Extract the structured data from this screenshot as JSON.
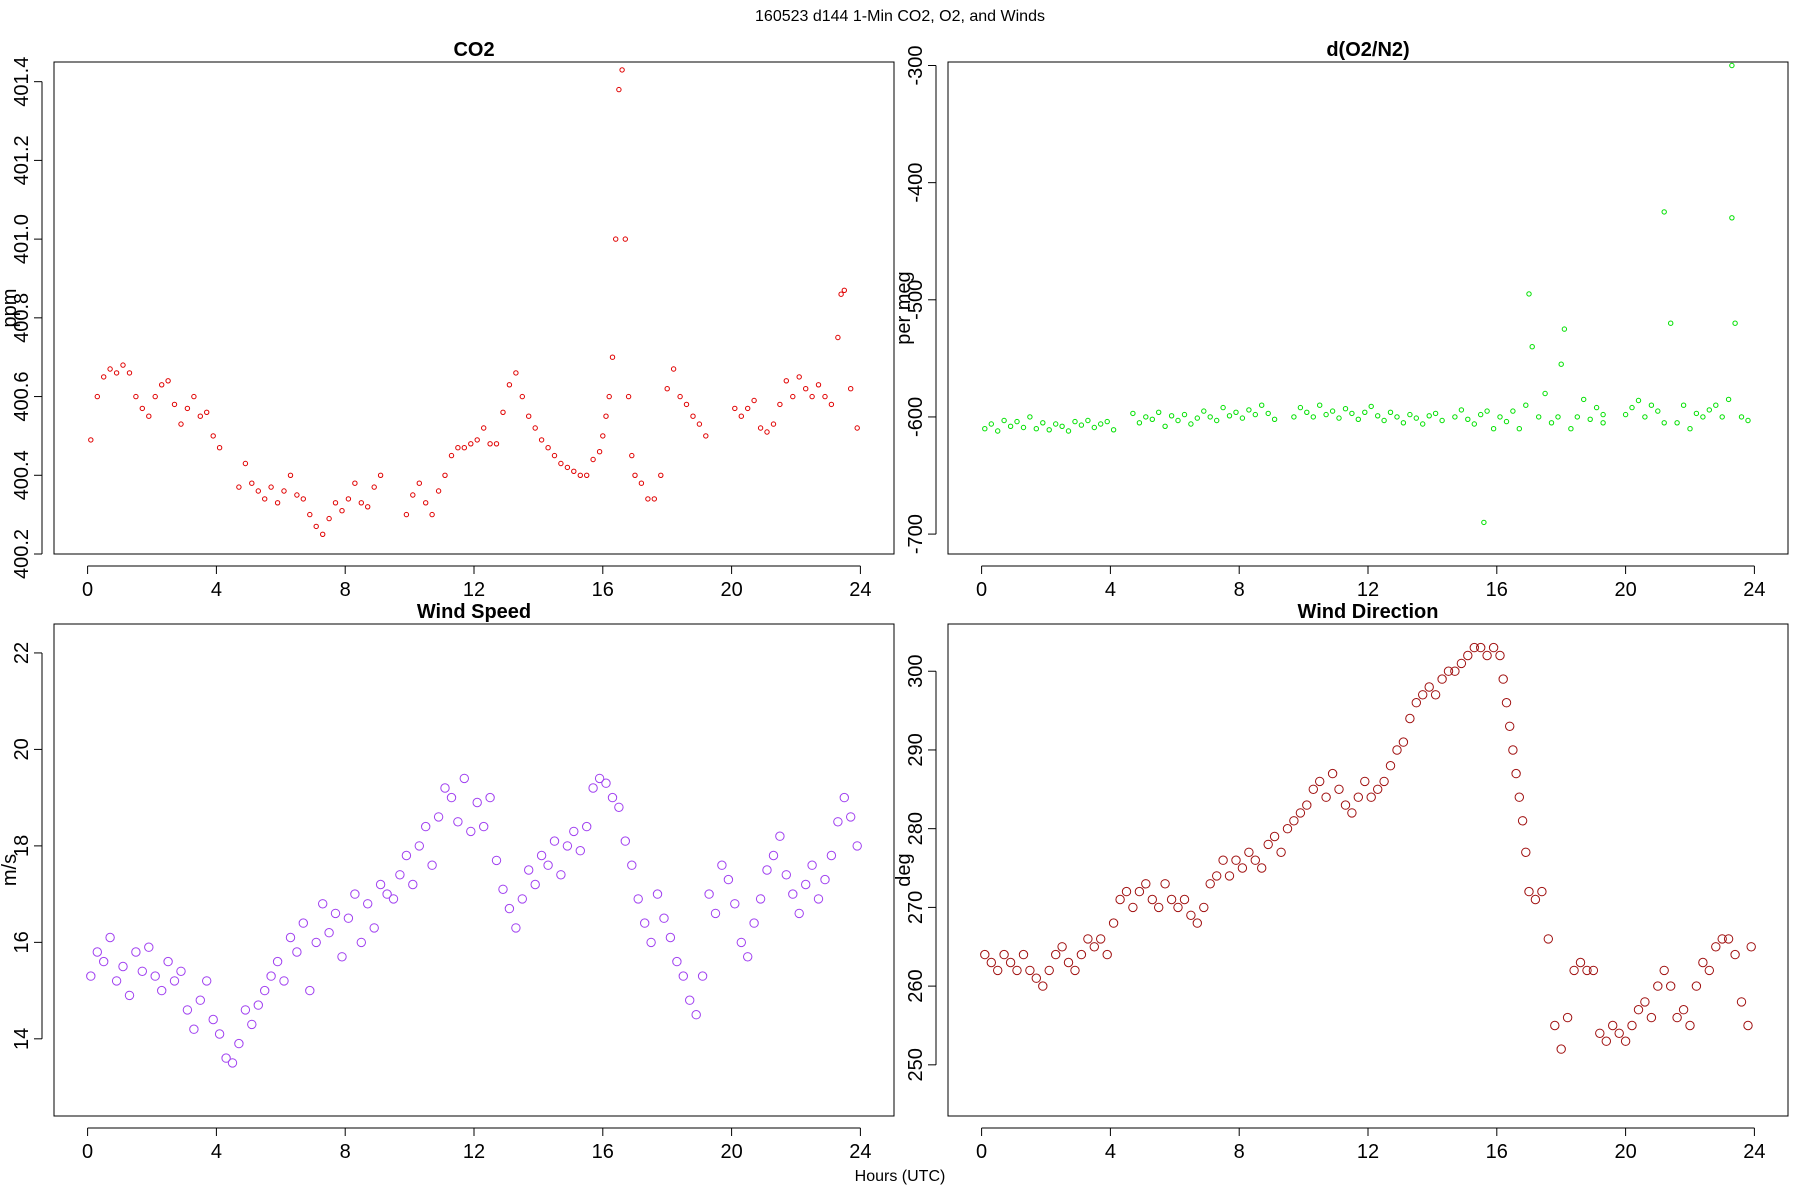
{
  "figure": {
    "title": "160523   d144   1-Min CO2, O2, and Winds",
    "xlabel": "Hours (UTC)"
  },
  "chart_data": [
    {
      "id": "co2",
      "type": "scatter",
      "title": "CO2",
      "xlabel": "",
      "ylabel": "ppm",
      "color": "#e00000",
      "marker_size": "small",
      "xlim": [
        0,
        24
      ],
      "ylim": [
        400.2,
        401.45
      ],
      "xticks": [
        0,
        4,
        8,
        12,
        16,
        20,
        24
      ],
      "yticks": [
        400.2,
        400.4,
        400.6,
        400.8,
        401.0,
        401.2,
        401.4
      ],
      "ytick_labels": [
        "400.2",
        "400.4",
        "400.6",
        "400.8",
        "401.0",
        "401.2",
        "401.4"
      ],
      "x": [
        0.1,
        0.3,
        0.5,
        0.7,
        0.9,
        1.1,
        1.3,
        1.5,
        1.7,
        1.9,
        2.1,
        2.3,
        2.5,
        2.7,
        2.9,
        3.1,
        3.3,
        3.5,
        3.7,
        3.9,
        4.1,
        4.7,
        4.9,
        5.1,
        5.3,
        5.5,
        5.7,
        5.9,
        6.1,
        6.3,
        6.5,
        6.7,
        6.9,
        7.1,
        7.3,
        7.5,
        7.7,
        7.9,
        8.1,
        8.3,
        8.5,
        8.7,
        8.9,
        9.1,
        9.9,
        10.1,
        10.3,
        10.5,
        10.7,
        10.9,
        11.1,
        11.3,
        11.5,
        11.7,
        11.9,
        12.1,
        12.3,
        12.5,
        12.7,
        12.9,
        13.1,
        13.3,
        13.5,
        13.7,
        13.9,
        14.1,
        14.3,
        14.5,
        14.7,
        14.9,
        15.1,
        15.3,
        15.5,
        15.7,
        15.9,
        16.0,
        16.1,
        16.2,
        16.3,
        16.4,
        16.5,
        16.6,
        16.7,
        16.8,
        16.9,
        17.0,
        17.2,
        17.4,
        17.6,
        17.8,
        18.0,
        18.2,
        18.4,
        18.6,
        18.8,
        19.0,
        19.2,
        20.1,
        20.3,
        20.5,
        20.7,
        20.9,
        21.1,
        21.3,
        21.5,
        21.7,
        21.9,
        22.1,
        22.3,
        22.5,
        22.7,
        22.9,
        23.1,
        23.3,
        23.4,
        23.5,
        23.7,
        23.9
      ],
      "y": [
        400.49,
        400.6,
        400.65,
        400.67,
        400.66,
        400.68,
        400.66,
        400.6,
        400.57,
        400.55,
        400.6,
        400.63,
        400.64,
        400.58,
        400.53,
        400.57,
        400.6,
        400.55,
        400.56,
        400.5,
        400.47,
        400.37,
        400.43,
        400.38,
        400.36,
        400.34,
        400.37,
        400.33,
        400.36,
        400.4,
        400.35,
        400.34,
        400.3,
        400.27,
        400.25,
        400.29,
        400.33,
        400.31,
        400.34,
        400.38,
        400.33,
        400.32,
        400.37,
        400.4,
        400.3,
        400.35,
        400.38,
        400.33,
        400.3,
        400.36,
        400.4,
        400.45,
        400.47,
        400.47,
        400.48,
        400.49,
        400.52,
        400.48,
        400.48,
        400.56,
        400.63,
        400.66,
        400.6,
        400.55,
        400.52,
        400.49,
        400.47,
        400.45,
        400.43,
        400.42,
        400.41,
        400.4,
        400.4,
        400.44,
        400.46,
        400.5,
        400.55,
        400.6,
        400.7,
        401.0,
        401.38,
        401.43,
        401.0,
        400.6,
        400.45,
        400.4,
        400.38,
        400.34,
        400.34,
        400.4,
        400.62,
        400.67,
        400.6,
        400.58,
        400.55,
        400.53,
        400.5,
        400.57,
        400.55,
        400.57,
        400.59,
        400.52,
        400.51,
        400.53,
        400.58,
        400.64,
        400.6,
        400.65,
        400.62,
        400.6,
        400.63,
        400.6,
        400.58,
        400.75,
        400.86,
        400.87,
        400.62,
        400.52
      ]
    },
    {
      "id": "o2",
      "type": "scatter",
      "title": "d(O2/N2)",
      "xlabel": "",
      "ylabel": "per meg",
      "color": "#00e000",
      "marker_size": "small",
      "xlim": [
        0,
        24
      ],
      "ylim": [
        -717,
        -297
      ],
      "xticks": [
        0,
        4,
        8,
        12,
        16,
        20,
        24
      ],
      "yticks": [
        -700,
        -600,
        -500,
        -400,
        -300
      ],
      "ytick_labels": [
        "-700",
        "-600",
        "-500",
        "-400",
        "-300"
      ],
      "x": [
        0.1,
        0.3,
        0.5,
        0.7,
        0.9,
        1.1,
        1.3,
        1.5,
        1.7,
        1.9,
        2.1,
        2.3,
        2.5,
        2.7,
        2.9,
        3.1,
        3.3,
        3.5,
        3.7,
        3.9,
        4.1,
        4.7,
        4.9,
        5.1,
        5.3,
        5.5,
        5.7,
        5.9,
        6.1,
        6.3,
        6.5,
        6.7,
        6.9,
        7.1,
        7.3,
        7.5,
        7.7,
        7.9,
        8.1,
        8.3,
        8.5,
        8.7,
        8.9,
        9.1,
        9.7,
        9.9,
        10.1,
        10.3,
        10.5,
        10.7,
        10.9,
        11.1,
        11.3,
        11.5,
        11.7,
        11.9,
        12.1,
        12.3,
        12.5,
        12.7,
        12.9,
        13.1,
        13.3,
        13.5,
        13.7,
        13.9,
        14.1,
        14.3,
        14.7,
        14.9,
        15.1,
        15.3,
        15.5,
        15.6,
        15.7,
        15.9,
        16.1,
        16.3,
        16.5,
        16.7,
        16.9,
        17.0,
        17.1,
        17.3,
        17.5,
        17.7,
        17.9,
        18.0,
        18.1,
        18.3,
        18.5,
        18.7,
        18.9,
        19.1,
        19.3,
        19.3,
        20.0,
        20.2,
        20.4,
        20.6,
        20.8,
        21.0,
        21.2,
        21.2,
        21.4,
        21.6,
        21.8,
        22.0,
        22.2,
        22.4,
        22.6,
        22.8,
        23.0,
        23.2,
        23.3,
        23.3,
        23.4,
        23.6,
        23.8
      ],
      "y": [
        -610,
        -606,
        -612,
        -603,
        -608,
        -604,
        -609,
        -600,
        -610,
        -605,
        -611,
        -606,
        -608,
        -612,
        -604,
        -607,
        -603,
        -609,
        -606,
        -604,
        -611,
        -597,
        -605,
        -600,
        -602,
        -596,
        -608,
        -599,
        -603,
        -598,
        -606,
        -601,
        -595,
        -600,
        -603,
        -592,
        -599,
        -596,
        -601,
        -594,
        -598,
        -590,
        -597,
        -602,
        -600,
        -592,
        -596,
        -600,
        -590,
        -598,
        -595,
        -601,
        -593,
        -597,
        -602,
        -596,
        -591,
        -599,
        -603,
        -596,
        -600,
        -605,
        -598,
        -601,
        -606,
        -599,
        -597,
        -603,
        -600,
        -594,
        -602,
        -606,
        -598,
        -690,
        -595,
        -610,
        -600,
        -604,
        -595,
        -610,
        -590,
        -495,
        -540,
        -600,
        -580,
        -605,
        -600,
        -555,
        -525,
        -610,
        -600,
        -585,
        -602,
        -592,
        -598,
        -605,
        -598,
        -592,
        -586,
        -600,
        -590,
        -595,
        -605,
        -425,
        -520,
        -605,
        -590,
        -610,
        -597,
        -600,
        -594,
        -590,
        -600,
        -585,
        -300,
        -430,
        -520,
        -600,
        -603
      ]
    },
    {
      "id": "wind-speed",
      "type": "scatter",
      "title": "Wind Speed",
      "xlabel": "",
      "ylabel": "m/s",
      "color": "#a040f0",
      "marker_size": "large",
      "xlim": [
        0,
        24
      ],
      "ylim": [
        12.4,
        22.6
      ],
      "xticks": [
        0,
        4,
        8,
        12,
        16,
        20,
        24
      ],
      "yticks": [
        14,
        16,
        18,
        20,
        22
      ],
      "ytick_labels": [
        "14",
        "16",
        "18",
        "20",
        "22"
      ],
      "x": [
        0.1,
        0.3,
        0.5,
        0.7,
        0.9,
        1.1,
        1.3,
        1.5,
        1.7,
        1.9,
        2.1,
        2.3,
        2.5,
        2.7,
        2.9,
        3.1,
        3.3,
        3.5,
        3.7,
        3.9,
        4.1,
        4.3,
        4.5,
        4.7,
        4.9,
        5.1,
        5.3,
        5.5,
        5.7,
        5.9,
        6.1,
        6.3,
        6.5,
        6.7,
        6.9,
        7.1,
        7.3,
        7.5,
        7.7,
        7.9,
        8.1,
        8.3,
        8.5,
        8.7,
        8.9,
        9.1,
        9.3,
        9.5,
        9.7,
        9.9,
        10.1,
        10.3,
        10.5,
        10.7,
        10.9,
        11.1,
        11.3,
        11.5,
        11.7,
        11.9,
        12.1,
        12.3,
        12.5,
        12.7,
        12.9,
        13.1,
        13.3,
        13.5,
        13.7,
        13.9,
        14.1,
        14.3,
        14.5,
        14.7,
        14.9,
        15.1,
        15.3,
        15.5,
        15.7,
        15.9,
        16.1,
        16.3,
        16.5,
        16.7,
        16.9,
        17.1,
        17.3,
        17.5,
        17.7,
        17.9,
        18.1,
        18.3,
        18.5,
        18.7,
        18.9,
        19.1,
        19.3,
        19.5,
        19.7,
        19.9,
        20.1,
        20.3,
        20.5,
        20.7,
        20.9,
        21.1,
        21.3,
        21.5,
        21.7,
        21.9,
        22.1,
        22.3,
        22.5,
        22.7,
        22.9,
        23.1,
        23.3,
        23.5,
        23.7,
        23.9
      ],
      "y": [
        15.3,
        15.8,
        15.6,
        16.1,
        15.2,
        15.5,
        14.9,
        15.8,
        15.4,
        15.9,
        15.3,
        15.0,
        15.6,
        15.2,
        15.4,
        14.6,
        14.2,
        14.8,
        15.2,
        14.4,
        14.1,
        13.6,
        13.5,
        13.9,
        14.6,
        14.3,
        14.7,
        15.0,
        15.3,
        15.6,
        15.2,
        16.1,
        15.8,
        16.4,
        15.0,
        16.0,
        16.8,
        16.2,
        16.6,
        15.7,
        16.5,
        17.0,
        16.0,
        16.8,
        16.3,
        17.2,
        17.0,
        16.9,
        17.4,
        17.8,
        17.2,
        18.0,
        18.4,
        17.6,
        18.6,
        19.2,
        19.0,
        18.5,
        19.4,
        18.3,
        18.9,
        18.4,
        19.0,
        17.7,
        17.1,
        16.7,
        16.3,
        16.9,
        17.5,
        17.2,
        17.8,
        17.6,
        18.1,
        17.4,
        18.0,
        18.3,
        17.9,
        18.4,
        19.2,
        19.4,
        19.3,
        19.0,
        18.8,
        18.1,
        17.6,
        16.9,
        16.4,
        16.0,
        17.0,
        16.5,
        16.1,
        15.6,
        15.3,
        14.8,
        14.5,
        15.3,
        17.0,
        16.6,
        17.6,
        17.3,
        16.8,
        16.0,
        15.7,
        16.4,
        16.9,
        17.5,
        17.8,
        18.2,
        17.4,
        17.0,
        16.6,
        17.2,
        17.6,
        16.9,
        17.3,
        17.8,
        18.5,
        19.0,
        18.6,
        18.0
      ]
    },
    {
      "id": "wind-direction",
      "type": "scatter",
      "title": "Wind Direction",
      "xlabel": "",
      "ylabel": "deg",
      "color": "#a01010",
      "marker_size": "large",
      "xlim": [
        0,
        24
      ],
      "ylim": [
        243.5,
        306
      ],
      "xticks": [
        0,
        4,
        8,
        12,
        16,
        20,
        24
      ],
      "yticks": [
        250,
        260,
        270,
        280,
        290,
        300
      ],
      "ytick_labels": [
        "250",
        "260",
        "270",
        "280",
        "290",
        "300"
      ],
      "x": [
        0.1,
        0.3,
        0.5,
        0.7,
        0.9,
        1.1,
        1.3,
        1.5,
        1.7,
        1.9,
        2.1,
        2.3,
        2.5,
        2.7,
        2.9,
        3.1,
        3.3,
        3.5,
        3.7,
        3.9,
        4.1,
        4.3,
        4.5,
        4.7,
        4.9,
        5.1,
        5.3,
        5.5,
        5.7,
        5.9,
        6.1,
        6.3,
        6.5,
        6.7,
        6.9,
        7.1,
        7.3,
        7.5,
        7.7,
        7.9,
        8.1,
        8.3,
        8.5,
        8.7,
        8.9,
        9.1,
        9.3,
        9.5,
        9.7,
        9.9,
        10.1,
        10.3,
        10.5,
        10.7,
        10.9,
        11.1,
        11.3,
        11.5,
        11.7,
        11.9,
        12.1,
        12.3,
        12.5,
        12.7,
        12.9,
        13.1,
        13.3,
        13.5,
        13.7,
        13.9,
        14.1,
        14.3,
        14.5,
        14.7,
        14.9,
        15.1,
        15.3,
        15.5,
        15.7,
        15.9,
        16.1,
        16.2,
        16.3,
        16.4,
        16.5,
        16.6,
        16.7,
        16.8,
        16.9,
        17.0,
        17.2,
        17.4,
        17.6,
        17.8,
        18.0,
        18.2,
        18.4,
        18.6,
        18.8,
        19.0,
        19.2,
        19.4,
        19.6,
        19.8,
        20.0,
        20.2,
        20.4,
        20.6,
        20.8,
        21.0,
        21.2,
        21.4,
        21.6,
        21.8,
        22.0,
        22.2,
        22.4,
        22.6,
        22.8,
        23.0,
        23.2,
        23.4,
        23.6,
        23.8,
        23.9
      ],
      "y": [
        264,
        263,
        262,
        264,
        263,
        262,
        264,
        262,
        261,
        260,
        262,
        264,
        265,
        263,
        262,
        264,
        266,
        265,
        266,
        264,
        268,
        271,
        272,
        270,
        272,
        273,
        271,
        270,
        273,
        271,
        270,
        271,
        269,
        268,
        270,
        273,
        274,
        276,
        274,
        276,
        275,
        277,
        276,
        275,
        278,
        279,
        277,
        280,
        281,
        282,
        283,
        285,
        286,
        284,
        287,
        285,
        283,
        282,
        284,
        286,
        284,
        285,
        286,
        288,
        290,
        291,
        294,
        296,
        297,
        298,
        297,
        299,
        300,
        300,
        301,
        302,
        303,
        303,
        302,
        303,
        302,
        299,
        296,
        293,
        290,
        287,
        284,
        281,
        277,
        272,
        271,
        272,
        266,
        255,
        252,
        256,
        262,
        263,
        262,
        262,
        254,
        253,
        255,
        254,
        253,
        255,
        257,
        258,
        256,
        260,
        262,
        260,
        256,
        257,
        255,
        260,
        263,
        262,
        265,
        266,
        266,
        264,
        258,
        255,
        265
      ]
    }
  ]
}
